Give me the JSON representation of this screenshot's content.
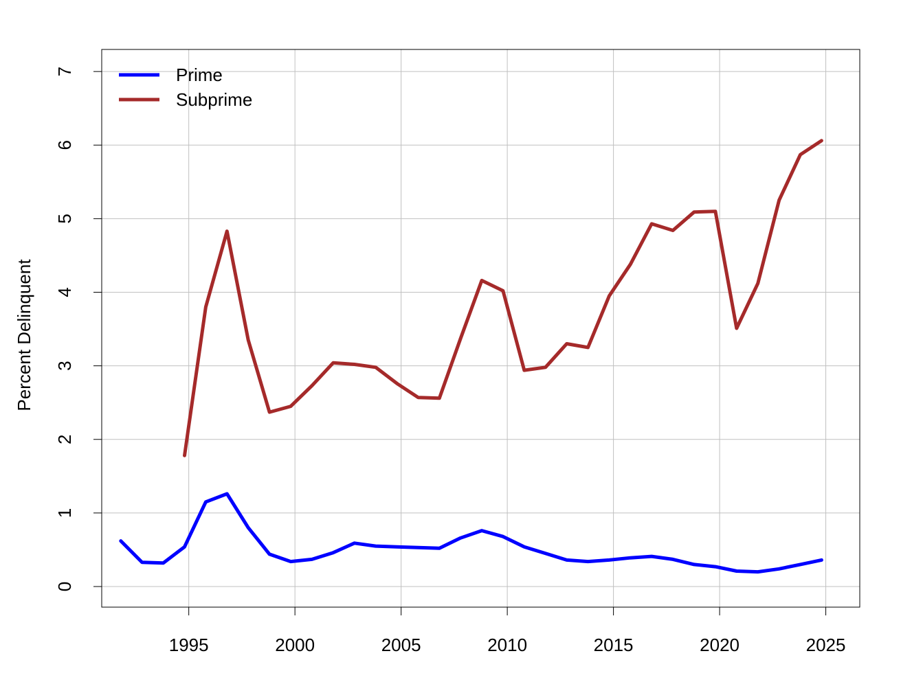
{
  "chart_data": {
    "type": "line",
    "title": "",
    "xlabel": "",
    "ylabel": "Percent Delinquent",
    "xlim": [
      1990.9,
      2026.6
    ],
    "ylim": [
      -0.28,
      7.3
    ],
    "xticks": [
      1995,
      2000,
      2005,
      2010,
      2015,
      2020,
      2025
    ],
    "yticks": [
      0,
      1,
      2,
      3,
      4,
      5,
      6,
      7
    ],
    "grid": true,
    "legend_position": "top-left",
    "series": [
      {
        "name": "Prime",
        "color": "#0000ff",
        "x": [
          1991.8,
          1992.8,
          1993.8,
          1994.8,
          1995.8,
          1996.8,
          1997.8,
          1998.8,
          1999.8,
          2000.8,
          2001.8,
          2002.8,
          2003.8,
          2004.8,
          2005.8,
          2006.8,
          2007.8,
          2008.8,
          2009.8,
          2010.8,
          2011.8,
          2012.8,
          2013.8,
          2014.8,
          2015.8,
          2016.8,
          2017.8,
          2018.8,
          2019.8,
          2020.8,
          2021.8,
          2022.8,
          2023.8,
          2024.8
        ],
        "values": [
          0.62,
          0.33,
          0.32,
          0.54,
          1.15,
          1.26,
          0.8,
          0.44,
          0.34,
          0.37,
          0.46,
          0.59,
          0.55,
          0.54,
          0.53,
          0.52,
          0.66,
          0.76,
          0.68,
          0.54,
          0.45,
          0.36,
          0.34,
          0.36,
          0.39,
          0.41,
          0.37,
          0.3,
          0.27,
          0.21,
          0.2,
          0.24,
          0.3,
          0.36
        ]
      },
      {
        "name": "Subprime",
        "color": "#a52a2a",
        "x": [
          1994.8,
          1995.8,
          1996.8,
          1997.8,
          1998.8,
          1999.8,
          2000.8,
          2001.8,
          2002.8,
          2003.8,
          2004.8,
          2005.8,
          2006.8,
          2007.8,
          2008.8,
          2009.8,
          2010.8,
          2011.8,
          2012.8,
          2013.8,
          2014.8,
          2015.8,
          2016.8,
          2017.8,
          2018.8,
          2019.8,
          2020.8,
          2021.8,
          2022.8,
          2023.8,
          2024.8
        ],
        "values": [
          1.78,
          3.8,
          4.83,
          3.35,
          2.37,
          2.45,
          2.73,
          3.04,
          3.02,
          2.98,
          2.76,
          2.57,
          2.56,
          3.37,
          4.16,
          4.02,
          2.94,
          2.98,
          3.3,
          3.25,
          3.95,
          4.38,
          4.93,
          4.84,
          5.09,
          5.1,
          3.51,
          4.12,
          5.25,
          5.87,
          6.06
        ]
      }
    ]
  }
}
